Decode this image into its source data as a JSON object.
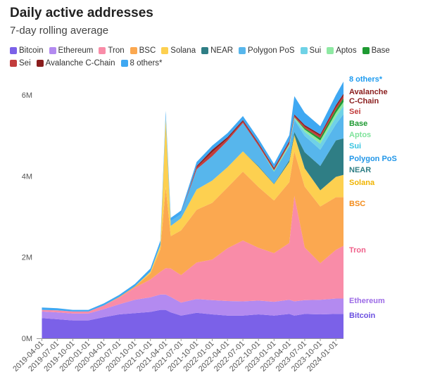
{
  "header": {
    "title": "Daily active addresses",
    "subtitle": "7-day rolling average"
  },
  "chart_data": {
    "type": "area",
    "stacked": true,
    "title": "Daily active addresses",
    "subtitle": "7-day rolling average",
    "xlabel": "",
    "ylabel": "",
    "ylim": [
      0,
      6400000
    ],
    "y_ticks": [
      0,
      2000000,
      4000000,
      6000000
    ],
    "y_tick_labels": [
      "0M",
      "2M",
      "4M",
      "6M"
    ],
    "x_tick_labels": [
      "2019-04-01",
      "2019-07-01",
      "2019-10-01",
      "2020-01-01",
      "2020-04-01",
      "2020-07-01",
      "2020-10-01",
      "2021-01-01",
      "2021-04-01",
      "2021-07-01",
      "2021-10-01",
      "2022-01-01",
      "2022-04-01",
      "2022-07-01",
      "2022-10-01",
      "2023-01-01",
      "2023-04-01",
      "2023-07-01",
      "2023-10-01",
      "2024-01-01"
    ],
    "grid": false,
    "legend_position": "top",
    "x": [
      "2019-04-01",
      "2019-07-01",
      "2019-10-01",
      "2020-01-01",
      "2020-04-01",
      "2020-07-01",
      "2020-10-01",
      "2021-01-01",
      "2021-03-01",
      "2021-04-01",
      "2021-05-01",
      "2021-07-01",
      "2021-10-01",
      "2022-01-01",
      "2022-04-01",
      "2022-07-01",
      "2022-10-01",
      "2023-01-01",
      "2023-04-01",
      "2023-05-01",
      "2023-07-01",
      "2023-10-01",
      "2024-01-01",
      "2024-02-15"
    ],
    "series": [
      {
        "name": "Bitcoin",
        "color": "#7b61e8",
        "values": [
          500000,
          470000,
          440000,
          440000,
          520000,
          590000,
          620000,
          650000,
          700000,
          700000,
          640000,
          560000,
          630000,
          590000,
          560000,
          560000,
          590000,
          560000,
          600000,
          560000,
          600000,
          590000,
          600000,
          600000
        ]
      },
      {
        "name": "Ethereum",
        "color": "#b38af0",
        "values": [
          160000,
          170000,
          170000,
          170000,
          200000,
          250000,
          330000,
          360000,
          380000,
          380000,
          380000,
          320000,
          340000,
          350000,
          360000,
          350000,
          340000,
          340000,
          350000,
          350000,
          340000,
          360000,
          380000,
          380000
        ]
      },
      {
        "name": "Tron",
        "color": "#f98ca8",
        "values": [
          40000,
          50000,
          50000,
          50000,
          90000,
          160000,
          300000,
          440000,
          560000,
          650000,
          700000,
          680000,
          900000,
          1000000,
          1300000,
          1500000,
          1300000,
          1200000,
          1400000,
          2600000,
          1300000,
          900000,
          1200000,
          1300000
        ]
      },
      {
        "name": "BSC",
        "color": "#fba850",
        "values": [
          0,
          0,
          0,
          0,
          0,
          20000,
          30000,
          150000,
          560000,
          2000000,
          800000,
          1100000,
          1300000,
          1400000,
          1500000,
          1700000,
          1500000,
          1300000,
          1500000,
          1100000,
          1500000,
          1400000,
          1300000,
          1200000
        ]
      },
      {
        "name": "Solana",
        "color": "#fdd050",
        "values": [
          0,
          0,
          0,
          0,
          0,
          0,
          0,
          40000,
          90000,
          1700000,
          250000,
          300000,
          500000,
          550000,
          500000,
          500000,
          500000,
          400000,
          500000,
          400000,
          450000,
          400000,
          500000,
          550000
        ]
      },
      {
        "name": "NEAR",
        "color": "#2f7e85",
        "values": [
          0,
          0,
          0,
          0,
          0,
          0,
          0,
          0,
          0,
          0,
          0,
          0,
          0,
          0,
          0,
          0,
          20000,
          10000,
          40000,
          80000,
          400000,
          600000,
          900000,
          900000
        ]
      },
      {
        "name": "Polygon PoS",
        "color": "#57b6ec",
        "values": [
          0,
          0,
          0,
          0,
          0,
          0,
          0,
          0,
          20000,
          70000,
          120000,
          100000,
          500000,
          600000,
          650000,
          700000,
          500000,
          300000,
          350000,
          300000,
          400000,
          400000,
          400000,
          600000
        ]
      },
      {
        "name": "Sui",
        "color": "#6fd2e6",
        "values": [
          0,
          0,
          0,
          0,
          0,
          0,
          0,
          0,
          0,
          0,
          0,
          0,
          0,
          0,
          0,
          0,
          0,
          0,
          0,
          30000,
          100000,
          150000,
          180000,
          200000
        ]
      },
      {
        "name": "Aptos",
        "color": "#8ee9a3",
        "values": [
          0,
          0,
          0,
          0,
          0,
          0,
          0,
          0,
          0,
          0,
          0,
          0,
          0,
          0,
          0,
          0,
          0,
          30000,
          50000,
          30000,
          60000,
          80000,
          100000,
          100000
        ]
      },
      {
        "name": "Base",
        "color": "#1e9a32",
        "values": [
          0,
          0,
          0,
          0,
          0,
          0,
          0,
          0,
          0,
          0,
          0,
          0,
          0,
          0,
          0,
          0,
          0,
          0,
          0,
          0,
          30000,
          60000,
          80000,
          90000
        ]
      },
      {
        "name": "Sei",
        "color": "#c23c3c",
        "values": [
          0,
          0,
          0,
          0,
          0,
          0,
          0,
          0,
          0,
          0,
          0,
          0,
          50000,
          100000,
          50000,
          40000,
          40000,
          30000,
          40000,
          40000,
          40000,
          50000,
          60000,
          60000
        ]
      },
      {
        "name": "Avalanche C-Chain",
        "color": "#8a1d1d",
        "values": [
          0,
          0,
          0,
          0,
          0,
          0,
          0,
          0,
          0,
          0,
          0,
          0,
          30000,
          60000,
          40000,
          30000,
          30000,
          30000,
          30000,
          30000,
          40000,
          40000,
          50000,
          50000
        ]
      },
      {
        "name": "8 others*",
        "color": "#3fa8f2",
        "values": [
          60000,
          50000,
          40000,
          40000,
          50000,
          50000,
          60000,
          80000,
          100000,
          110000,
          80000,
          90000,
          100000,
          100000,
          100000,
          100000,
          100000,
          100000,
          150000,
          450000,
          300000,
          200000,
          250000,
          300000
        ]
      }
    ],
    "end_labels": [
      {
        "text": "8 others*",
        "color": "#1d9bf0"
      },
      {
        "text": "Avalanche",
        "color": "#8a1d1d"
      },
      {
        "text": "C-Chain",
        "color": "#8a1d1d"
      },
      {
        "text": "Sei",
        "color": "#c23c3c"
      },
      {
        "text": "Base",
        "color": "#1e9a32"
      },
      {
        "text": "Aptos",
        "color": "#7ee29a"
      },
      {
        "text": "Sui",
        "color": "#37c4e0"
      },
      {
        "text": "Polygon PoS",
        "color": "#2196e8"
      },
      {
        "text": "NEAR",
        "color": "#2f7e85"
      },
      {
        "text": "Solana",
        "color": "#f0b400"
      },
      {
        "text": "BSC",
        "color": "#f38b1a"
      },
      {
        "text": "Tron",
        "color": "#f0608a"
      },
      {
        "text": "Ethereum",
        "color": "#9c6be6"
      },
      {
        "text": "Bitcoin",
        "color": "#6a4fe0"
      }
    ]
  }
}
